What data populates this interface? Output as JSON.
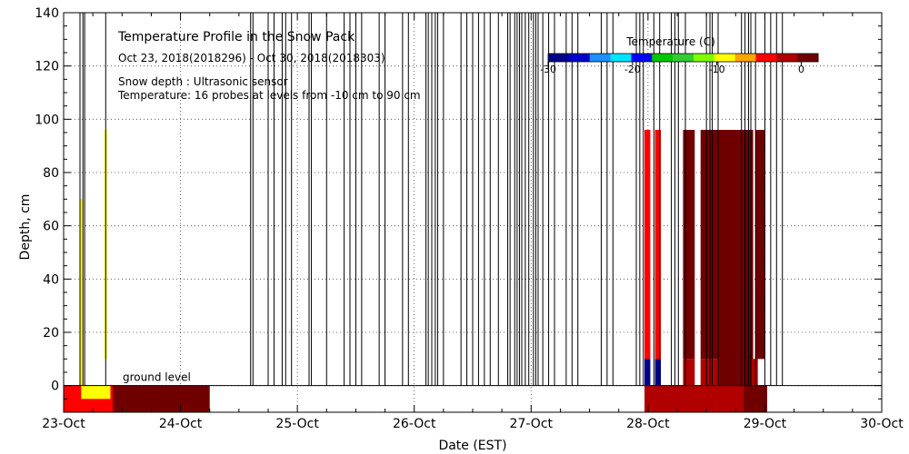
{
  "chart_data": {
    "type": "heatmap",
    "title": "Temperature Profile in the Snow Pack",
    "subtitle": "Oct 23, 2018(2018296) - Oct 30, 2018(2018303)",
    "notes": [
      "Snow depth : Ultrasonic sensor",
      "Temperature: 16 probes at levels from -10 cm to 90 cm"
    ],
    "xlabel": "Date (EST)",
    "ylabel": "Depth, cm",
    "xlim": [
      0,
      7
    ],
    "ylim": [
      -10,
      140
    ],
    "x_ticks": [
      {
        "x": 0,
        "label": "23-Oct"
      },
      {
        "x": 1,
        "label": "24-Oct"
      },
      {
        "x": 2,
        "label": "25-Oct"
      },
      {
        "x": 3,
        "label": "26-Oct"
      },
      {
        "x": 4,
        "label": "27-Oct"
      },
      {
        "x": 5,
        "label": "28-Oct"
      },
      {
        "x": 6,
        "label": "29-Oct"
      },
      {
        "x": 7,
        "label": "30-Oct"
      }
    ],
    "y_ticks": [
      0,
      20,
      40,
      60,
      80,
      100,
      120,
      140
    ],
    "ground_label": "ground level",
    "grid": true,
    "colorbar": {
      "title": "Temperature (C)",
      "ticks": [
        {
          "v": -30,
          "label": "-30"
        },
        {
          "v": -20,
          "label": "-20"
        },
        {
          "v": -10,
          "label": "-10"
        },
        {
          "v": 0,
          "label": "0"
        }
      ],
      "vmin": -30,
      "vmax": 2,
      "colors": [
        "#00008b",
        "#0000cd",
        "#1e90ff",
        "#00e5ff",
        "#0000ff",
        "#00c800",
        "#32cd32",
        "#7fff00",
        "#ffff00",
        "#ffa500",
        "#ff0000",
        "#b00000",
        "#700000"
      ]
    },
    "snow_depth_spikes_x": [
      0.14,
      0.165,
      0.18,
      0.36,
      1.6,
      1.62,
      1.75,
      1.8,
      1.87,
      1.9,
      1.95,
      2.1,
      2.12,
      2.25,
      2.4,
      2.45,
      2.5,
      2.55,
      2.7,
      2.75,
      2.9,
      2.95,
      3.1,
      3.12,
      3.15,
      3.18,
      3.2,
      3.25,
      3.4,
      3.45,
      3.5,
      3.55,
      3.6,
      3.65,
      3.72,
      3.8,
      3.82,
      3.86,
      3.88,
      3.9,
      3.92,
      3.95,
      3.98,
      4.02,
      4.04,
      4.06,
      4.1,
      4.15,
      4.2,
      4.3,
      4.35,
      4.4,
      4.6,
      4.65,
      4.7,
      4.9,
      4.93,
      4.96,
      5.05,
      5.1,
      5.2,
      5.23,
      5.26,
      5.32,
      5.5,
      5.53,
      5.55,
      5.6,
      5.8,
      5.83,
      5.86,
      5.88,
      5.92,
      6.0,
      6.05,
      6.1,
      6.15
    ],
    "temperature_cells": [
      {
        "x0": 0.0,
        "x1": 0.42,
        "y0": -10,
        "y1": 0,
        "temp": -3
      },
      {
        "x0": 0.42,
        "x1": 1.25,
        "y0": -10,
        "y1": 0,
        "temp": 1
      },
      {
        "x0": 0.15,
        "x1": 0.4,
        "y0": -5,
        "y1": 0,
        "temp": -8
      },
      {
        "x0": 0.14,
        "x1": 0.16,
        "y0": 0,
        "y1": 70,
        "temp": -8
      },
      {
        "x0": 0.35,
        "x1": 0.37,
        "y0": 10,
        "y1": 96,
        "temp": -8
      },
      {
        "x0": 4.97,
        "x1": 6.02,
        "y0": -10,
        "y1": 0,
        "temp": -1
      },
      {
        "x0": 5.82,
        "x1": 6.02,
        "y0": -10,
        "y1": 0,
        "temp": 0
      },
      {
        "x0": 4.97,
        "x1": 5.02,
        "y0": 10,
        "y1": 96,
        "temp": -4
      },
      {
        "x0": 4.97,
        "x1": 5.02,
        "y0": 0,
        "y1": 10,
        "temp": -30
      },
      {
        "x0": 5.06,
        "x1": 5.11,
        "y0": 10,
        "y1": 96,
        "temp": -4
      },
      {
        "x0": 5.06,
        "x1": 5.11,
        "y0": 0,
        "y1": 10,
        "temp": -30
      },
      {
        "x0": 5.3,
        "x1": 5.4,
        "y0": 10,
        "y1": 96,
        "temp": 1
      },
      {
        "x0": 5.3,
        "x1": 5.4,
        "y0": 0,
        "y1": 10,
        "temp": -1
      },
      {
        "x0": 5.45,
        "x1": 5.6,
        "y0": 10,
        "y1": 96,
        "temp": 1
      },
      {
        "x0": 5.45,
        "x1": 5.6,
        "y0": 0,
        "y1": 10,
        "temp": -1
      },
      {
        "x0": 5.6,
        "x1": 5.9,
        "y0": 0,
        "y1": 96,
        "temp": 2
      },
      {
        "x0": 5.88,
        "x1": 5.94,
        "y0": 0,
        "y1": 10,
        "temp": -1
      },
      {
        "x0": 5.92,
        "x1": 6.0,
        "y0": 10,
        "y1": 96,
        "temp": 1
      }
    ]
  }
}
